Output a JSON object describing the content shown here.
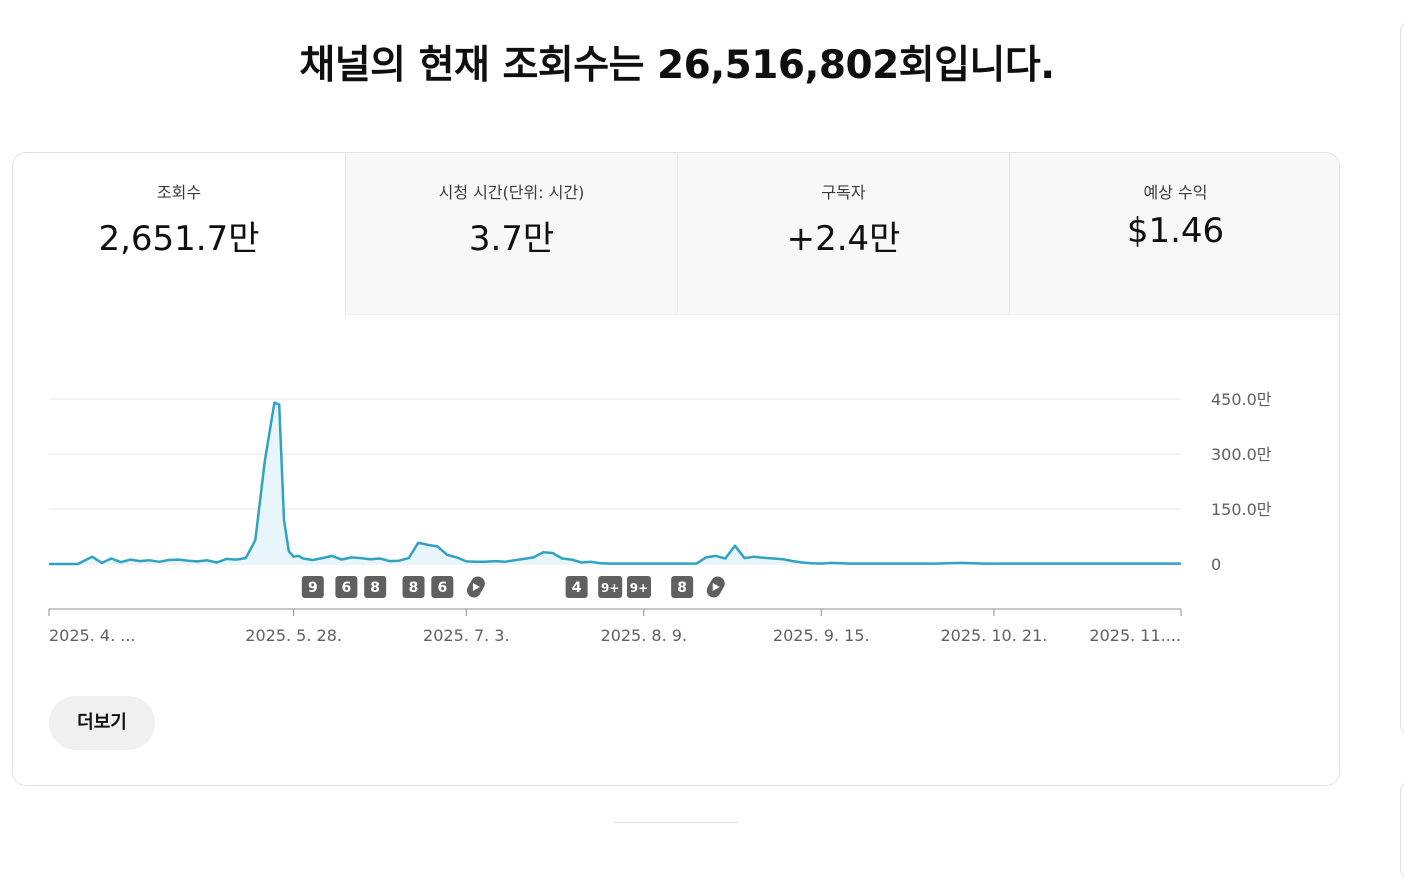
{
  "headline": "채널의 현재 조회수는 26,516,802회입니다.",
  "tabs": [
    {
      "label": "조회수",
      "value": "2,651.7만",
      "active": true
    },
    {
      "label": "시청 시간(단위: 시간)",
      "value": "3.7만",
      "active": false
    },
    {
      "label": "구독자",
      "value": "+2.4만",
      "active": false
    },
    {
      "label": "예상 수익",
      "value": "$1.46",
      "active": false
    }
  ],
  "more_button": "더보기",
  "colors": {
    "line": "#30a2c4",
    "fill": "#e8f6fb",
    "marker": "#606060",
    "grid": "#e5e5e5",
    "axis": "#909090"
  },
  "chart_data": {
    "type": "line",
    "ylabel_ticks": [
      "450.0만",
      "300.0만",
      "150.0만",
      "0"
    ],
    "y_ticks": [
      4500000,
      3000000,
      1500000,
      0
    ],
    "ylim": [
      0,
      4500000
    ],
    "x_tick_labels": [
      "2025. 4. ...",
      "2025. 5. 28.",
      "2025. 7. 3.",
      "2025. 8. 9.",
      "2025. 9. 15.",
      "2025. 10. 21.",
      "2025. 11...."
    ],
    "x_tick_day_index": [
      0,
      51,
      87,
      124,
      161,
      197,
      236
    ],
    "grid": true,
    "series": [
      {
        "x_day_index": [
          0,
          3,
          6,
          9,
          11,
          13,
          15,
          17,
          19,
          21,
          23,
          25,
          27,
          29,
          31,
          33,
          35,
          37,
          39,
          41,
          43,
          45,
          47,
          48,
          49,
          50,
          51,
          52,
          53,
          55,
          57,
          59,
          61,
          63,
          65,
          67,
          69,
          71,
          73,
          75,
          77,
          79,
          81,
          83,
          85,
          87,
          89,
          91,
          93,
          95,
          97,
          99,
          101,
          103,
          105,
          107,
          109,
          111,
          113,
          115,
          117,
          119,
          121,
          123,
          125,
          127,
          129,
          131,
          133,
          135,
          137,
          139,
          141,
          143,
          145,
          147,
          149,
          151,
          153,
          155,
          157,
          159,
          161,
          163,
          165,
          167,
          170,
          175,
          180,
          185,
          190,
          195,
          200,
          205,
          210,
          215,
          220,
          225,
          230,
          236
        ],
        "values": [
          0,
          0,
          0,
          200000,
          30000,
          150000,
          50000,
          120000,
          80000,
          100000,
          60000,
          110000,
          120000,
          90000,
          70000,
          100000,
          40000,
          140000,
          120000,
          160000,
          650000,
          2800000,
          4400000,
          4350000,
          1200000,
          350000,
          200000,
          220000,
          150000,
          110000,
          160000,
          220000,
          120000,
          180000,
          160000,
          130000,
          150000,
          80000,
          90000,
          160000,
          580000,
          520000,
          480000,
          250000,
          180000,
          70000,
          60000,
          60000,
          80000,
          60000,
          100000,
          140000,
          180000,
          320000,
          300000,
          150000,
          120000,
          40000,
          60000,
          20000,
          10000,
          10000,
          10000,
          10000,
          10000,
          10000,
          10000,
          10000,
          10000,
          10000,
          180000,
          220000,
          150000,
          500000,
          160000,
          200000,
          170000,
          150000,
          130000,
          80000,
          40000,
          20000,
          10000,
          30000,
          20000,
          10000,
          10000,
          10000,
          10000,
          10000,
          30000,
          10000,
          10000,
          10000,
          10000,
          10000,
          10000,
          10000,
          10000,
          10000
        ]
      }
    ],
    "markers": [
      {
        "label": "9",
        "day_index": 55
      },
      {
        "label": "6",
        "day_index": 62
      },
      {
        "label": "8",
        "day_index": 68
      },
      {
        "label": "8",
        "day_index": 76
      },
      {
        "label": "6",
        "day_index": 82
      },
      {
        "label": "shorts-icon",
        "day_index": 89
      },
      {
        "label": "4",
        "day_index": 110
      },
      {
        "label": "9+",
        "day_index": 117
      },
      {
        "label": "9+",
        "day_index": 123
      },
      {
        "label": "8",
        "day_index": 132
      },
      {
        "label": "shorts-icon",
        "day_index": 139
      }
    ]
  }
}
